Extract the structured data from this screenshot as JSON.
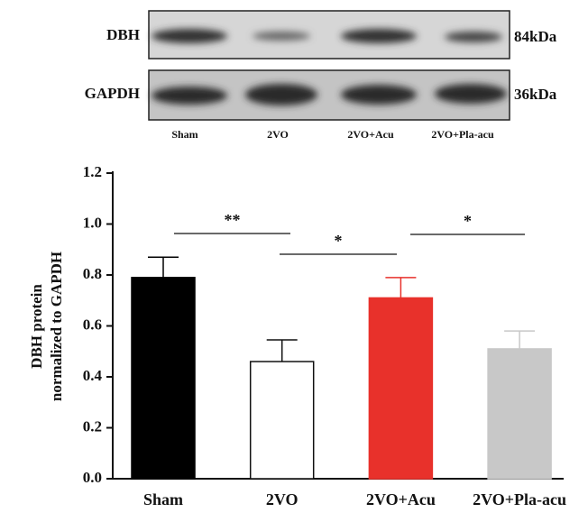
{
  "chart_data": {
    "type": "bar",
    "blot": {
      "rows": [
        {
          "protein": "DBH",
          "size": "84kDa"
        },
        {
          "protein": "GAPDH",
          "size": "36kDa"
        }
      ]
    },
    "ylabel": [
      "DBH protein",
      "normalized to GAPDH"
    ],
    "categories": [
      "Sham",
      "2VO",
      "2VO+Acu",
      "2VO+Pla-acu"
    ],
    "values": [
      0.79,
      0.46,
      0.71,
      0.51
    ],
    "errors": [
      0.08,
      0.085,
      0.08,
      0.07
    ],
    "colors": [
      "#000000",
      "#ffffff",
      "#e8312b",
      "#c8c8c8"
    ],
    "ylim": [
      0,
      1.2
    ],
    "yticks": [
      {
        "value": 0,
        "label": "0.0"
      },
      0.2,
      0.4,
      0.6,
      0.8,
      {
        "value": 1,
        "label": "1.0"
      },
      1.2
    ],
    "annotations": [
      {
        "text": "**"
      },
      {
        "text": "*"
      },
      {
        "text": "*"
      }
    ]
  }
}
